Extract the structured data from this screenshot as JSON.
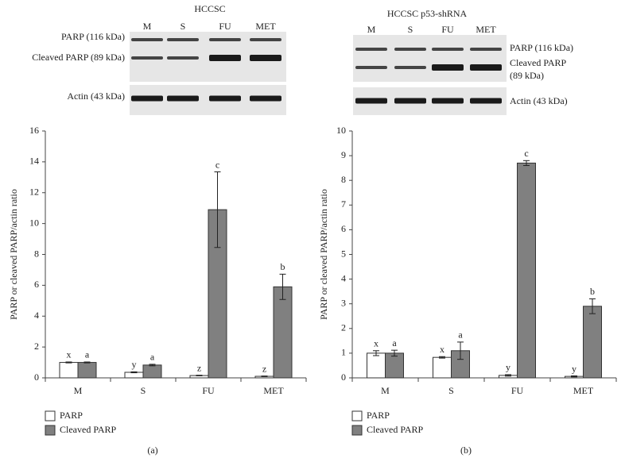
{
  "panels": [
    {
      "title": "HCCSC",
      "lanes": [
        "M",
        "S",
        "FU",
        "MET"
      ],
      "blot_labels": [
        "PARP (116 kDa)",
        "Cleaved PARP (89 kDa)",
        "Actin (43 kDa)"
      ],
      "panel_label": "(a)"
    },
    {
      "title": "HCCSC p53-shRNA",
      "lanes": [
        "M",
        "S",
        "FU",
        "MET"
      ],
      "blot_labels": [
        "PARP (116 kDa)",
        "Cleaved PARP",
        "(89 kDa)",
        "Actin (43 kDa)"
      ],
      "panel_label": "(b)"
    }
  ],
  "chart_data": [
    {
      "type": "bar",
      "y_label": "PARP or cleaved PARP/actin ratio",
      "categories": [
        "M",
        "S",
        "FU",
        "MET"
      ],
      "series": [
        {
          "name": "PARP",
          "color": "#ffffff",
          "values": [
            1.0,
            0.36,
            0.15,
            0.1
          ],
          "errors": [
            0.03,
            0.03,
            0.02,
            0.02
          ],
          "letters": [
            "x",
            "y",
            "z",
            "z"
          ]
        },
        {
          "name": "Cleaved PARP",
          "color": "#808080",
          "values": [
            1.0,
            0.83,
            10.9,
            5.9
          ],
          "errors": [
            0.03,
            0.05,
            2.45,
            0.82
          ],
          "letters": [
            "a",
            "a",
            "c",
            "b"
          ]
        }
      ],
      "ylim": [
        0,
        16
      ],
      "yticks": [
        0,
        2,
        4,
        6,
        8,
        10,
        12,
        14,
        16
      ],
      "grid": false
    },
    {
      "type": "bar",
      "y_label": "PARP or cleaved PARP/actin ratio",
      "categories": [
        "M",
        "S",
        "FU",
        "MET"
      ],
      "series": [
        {
          "name": "PARP",
          "color": "#ffffff",
          "values": [
            1.0,
            0.83,
            0.1,
            0.06
          ],
          "errors": [
            0.1,
            0.03,
            0.03,
            0.02
          ],
          "letters": [
            "x",
            "x",
            "y",
            "y"
          ]
        },
        {
          "name": "Cleaved PARP",
          "color": "#808080",
          "values": [
            1.0,
            1.1,
            8.7,
            2.9
          ],
          "errors": [
            0.12,
            0.35,
            0.1,
            0.3
          ],
          "letters": [
            "a",
            "a",
            "c",
            "b"
          ]
        }
      ],
      "ylim": [
        0,
        10
      ],
      "yticks": [
        0,
        1,
        2,
        3,
        4,
        5,
        6,
        7,
        8,
        9,
        10
      ],
      "grid": false
    }
  ]
}
